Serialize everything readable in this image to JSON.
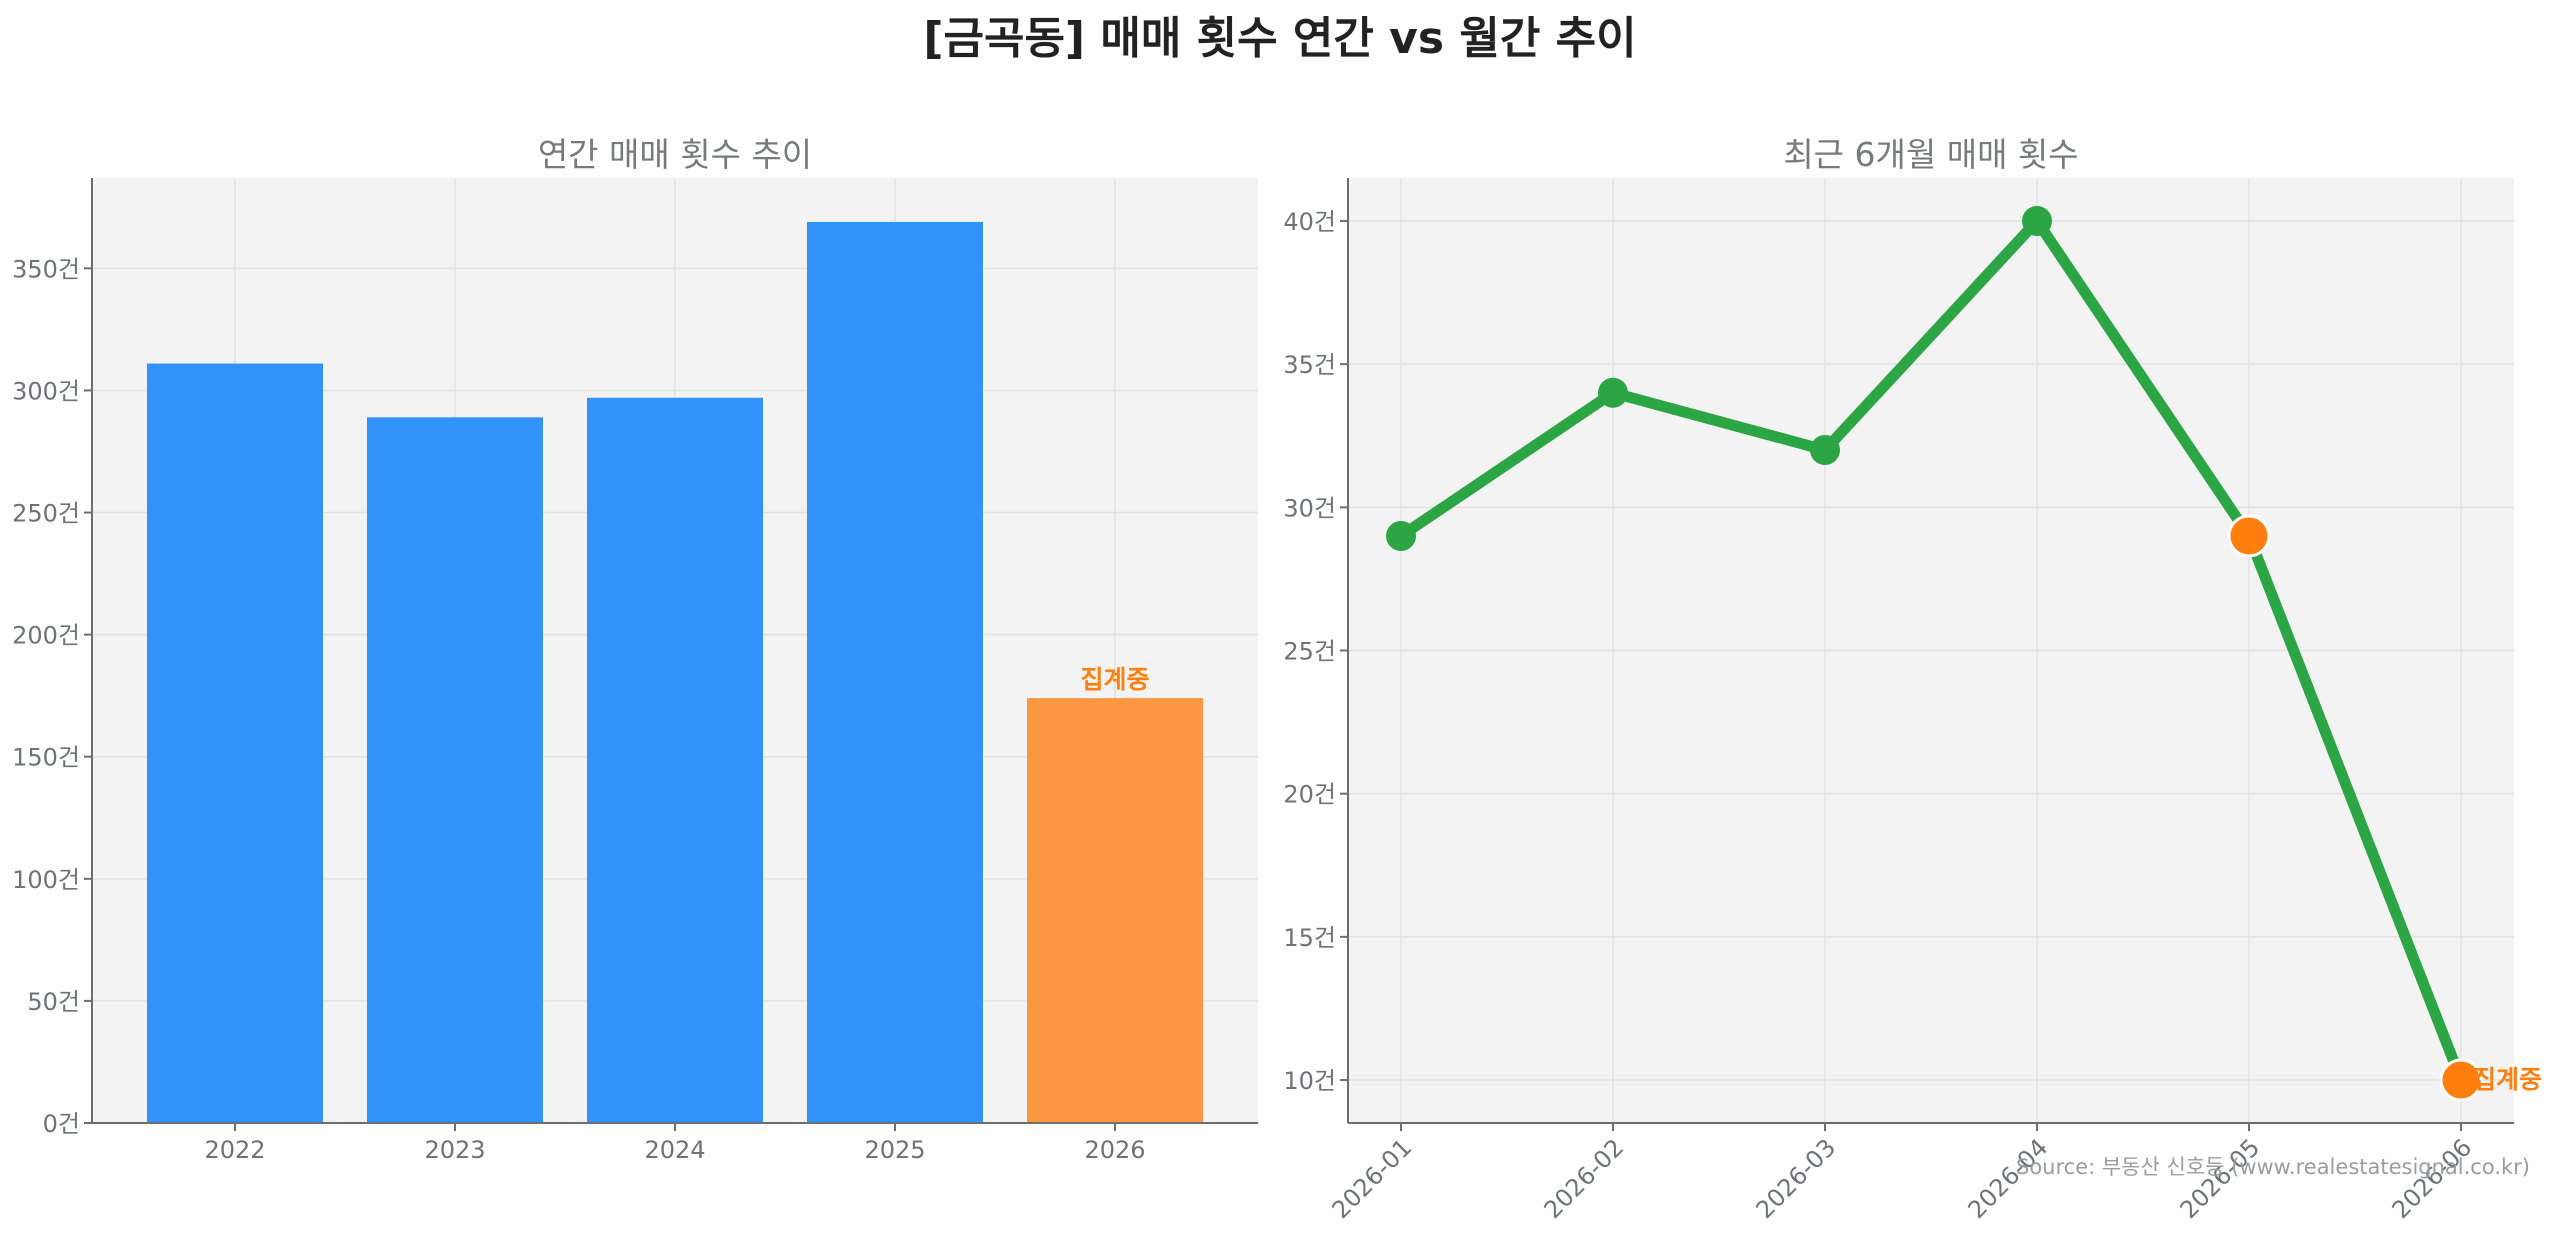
{
  "title": "[금곡동] 매매 횟수 연간 vs 월간 추이",
  "source": "Source: 부동산 신호등 (www.realestatesignal.co.kr)",
  "colors": {
    "bar": "#3193f9",
    "bar_highlight": "#fa9740",
    "line": "#2ca644",
    "highlight": "#ff7f0e"
  },
  "chart_data": [
    {
      "type": "bar",
      "title": "연간 매매 횟수 추이",
      "categories": [
        "2022",
        "2023",
        "2024",
        "2025",
        "2026"
      ],
      "values": [
        311,
        289,
        297,
        369,
        174
      ],
      "highlight_index": 4,
      "annotation": "집계중",
      "ylim": [
        0,
        387
      ],
      "yticks": [
        0,
        50,
        100,
        150,
        200,
        250,
        300,
        350
      ],
      "ytick_suffix": "건",
      "grid": true
    },
    {
      "type": "line",
      "title": "최근 6개월 매매 횟수",
      "categories": [
        "2026-01",
        "2026-02",
        "2026-03",
        "2026-04",
        "2026-05",
        "2026-06"
      ],
      "values": [
        29,
        34,
        32,
        40,
        29,
        10
      ],
      "highlight_indices": [
        4,
        5
      ],
      "annotation": "집계중",
      "ylim": [
        8.5,
        41.5
      ],
      "yticks": [
        10,
        15,
        20,
        25,
        30,
        35,
        40
      ],
      "ytick_suffix": "건",
      "grid": true
    }
  ]
}
